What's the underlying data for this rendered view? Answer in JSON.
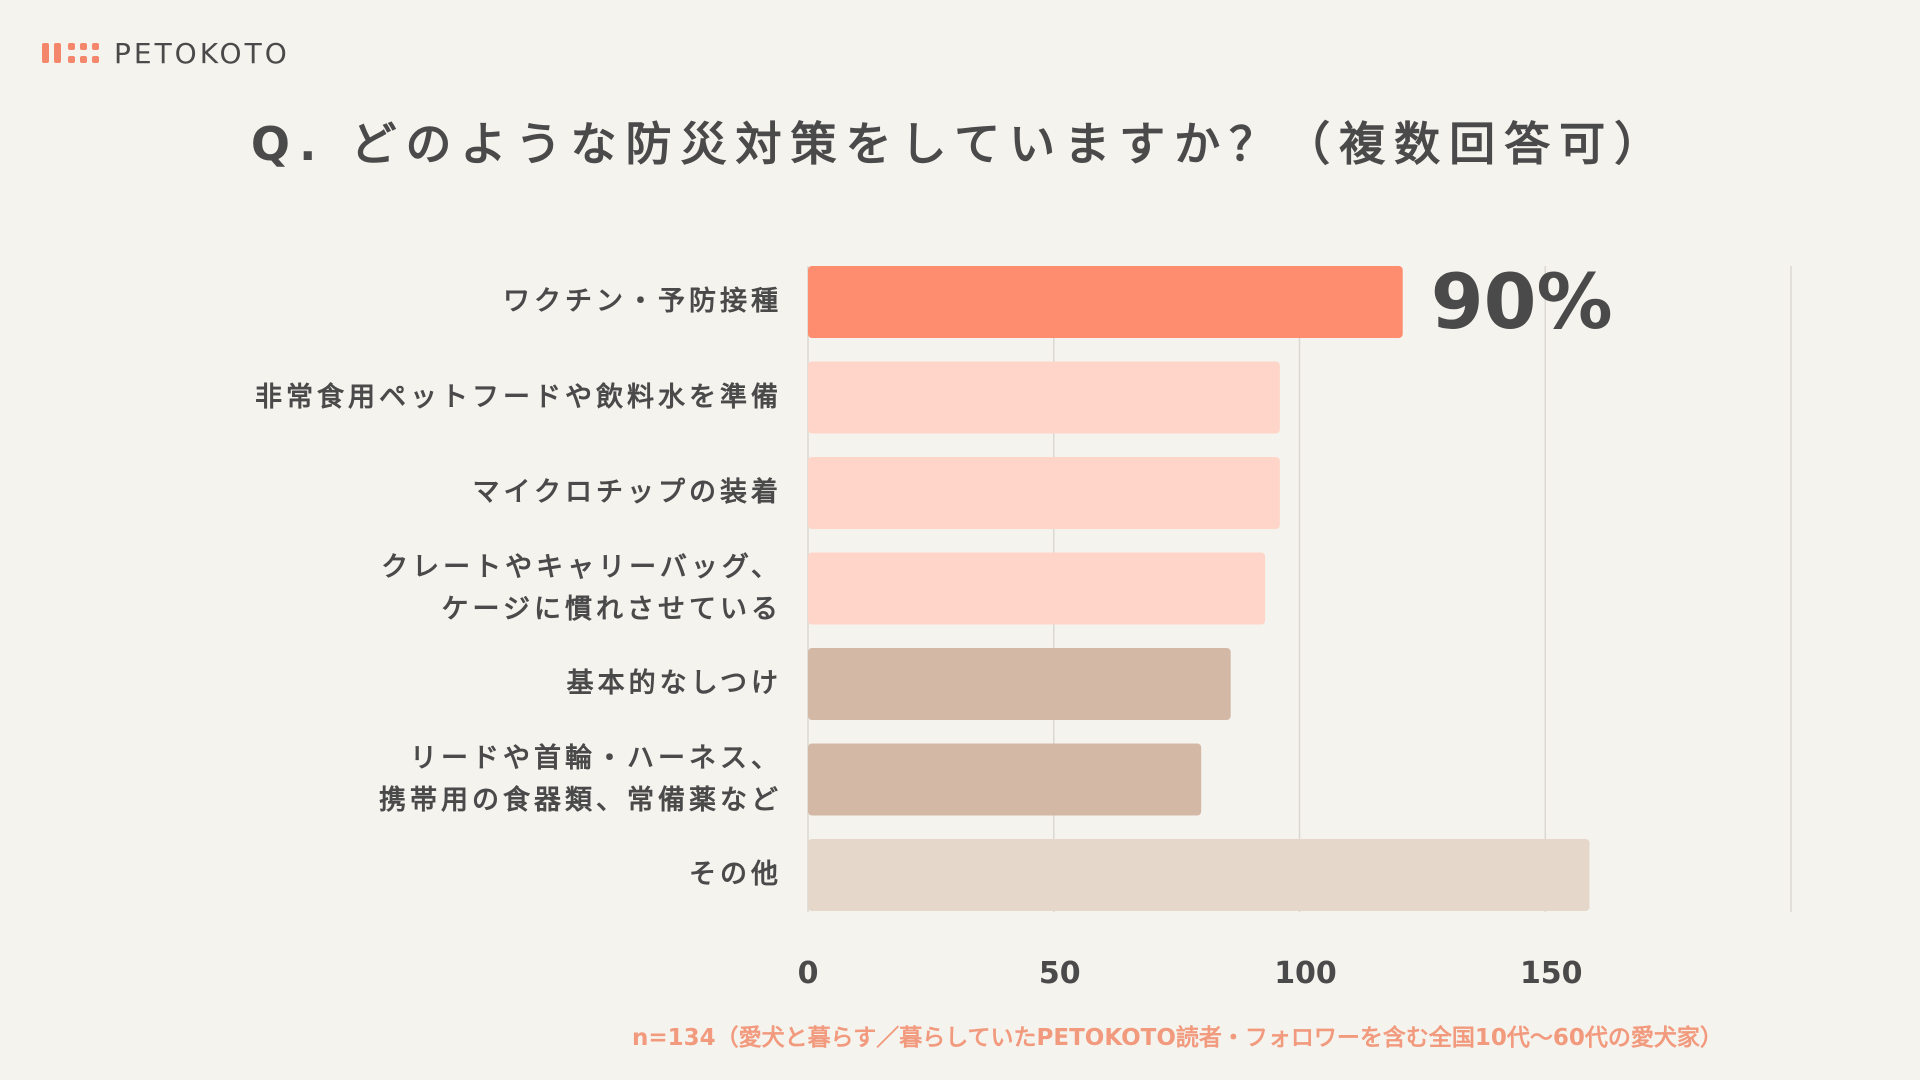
{
  "logo": {
    "text": "PETOKOTO"
  },
  "title": "Q. どのような防災対策をしていますか？（複数回答可）",
  "footnote": "n=134（愛犬と暮らす／暮らしていたPETOKOTO読者・フォロワーを含む全国10代〜60代の愛犬家）",
  "colors": {
    "background": "#f5f3ee",
    "highlight": "#fe8c6e",
    "light_coral": "#fed5c8",
    "tan": "#d3b9a5",
    "beige": "#e5d7ca",
    "footnote": "#f29a7e"
  },
  "chart_data": {
    "type": "bar",
    "orientation": "horizontal",
    "title": "Q. どのような防災対策をしていますか？（複数回答可）",
    "categories": [
      [
        "ワクチン・予防接種"
      ],
      [
        "非常食用ペットフードや飲料水を準備"
      ],
      [
        "マイクロチップの装着"
      ],
      [
        "クレートやキャリーバッグ、",
        "ケージに慣れさせている"
      ],
      [
        "基本的なしつけ"
      ],
      [
        "リードや首輪・ハーネス、",
        "携帯用の食器類、常備薬など"
      ],
      [
        "その他"
      ]
    ],
    "values": [
      121,
      96,
      96,
      93,
      86,
      80,
      159
    ],
    "bar_colors": [
      "#fe8c6e",
      "#fed5c8",
      "#fed5c8",
      "#fed5c8",
      "#d3b9a5",
      "#d3b9a5",
      "#e5d7ca"
    ],
    "annotation": "90%",
    "xlim": [
      0,
      200
    ],
    "xticks": [
      0,
      50,
      100,
      150
    ],
    "grid": true
  }
}
